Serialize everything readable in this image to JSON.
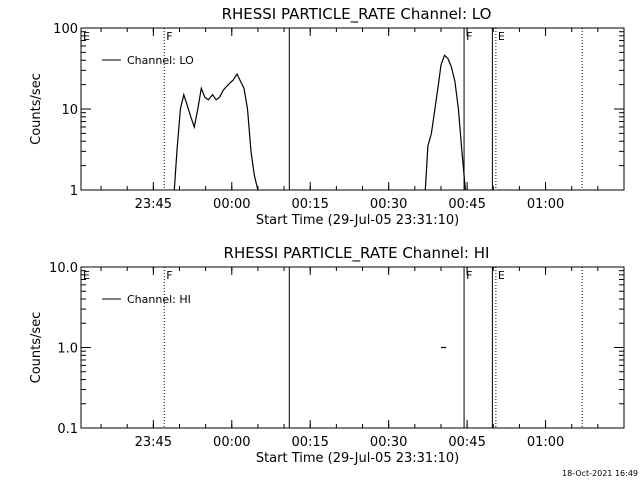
{
  "footer": {
    "timestamp": "18-Oct-2021 16:49"
  },
  "chart_data": [
    {
      "type": "line",
      "title": "RHESSI PARTICLE_RATE Channel: LO",
      "xlabel": "Start Time (29-Jul-05 23:31:10)",
      "ylabel": "Counts/sec",
      "yscale": "log",
      "ylim": [
        1,
        100
      ],
      "xlim": [
        "23:31:10",
        "01:15:00"
      ],
      "x_ticks": [
        "23:45",
        "00:00",
        "00:15",
        "00:30",
        "00:45",
        "01:00"
      ],
      "y_ticks": [
        "1",
        "10",
        "100"
      ],
      "legend": {
        "position": "top-left",
        "entries": [
          "Channel: LO"
        ]
      },
      "markers": [
        {
          "label": "E",
          "time": "23:31:10",
          "style": "dotted"
        },
        {
          "label": "F",
          "time": "23:47:05",
          "style": "dotted"
        },
        {
          "label": "",
          "time": "00:11:00",
          "style": "solid"
        },
        {
          "label": "F",
          "time": "00:44:25",
          "style": "solid"
        },
        {
          "label": "",
          "time": "00:49:50",
          "style": "solid"
        },
        {
          "label": "E",
          "time": "00:50:30",
          "style": "dotted"
        },
        {
          "label": "",
          "time": "01:07:00",
          "style": "dotted"
        }
      ],
      "series": [
        {
          "name": "Channel: LO",
          "segments": [
            [
              [
                "23:49:00",
                1
              ],
              [
                "23:49:30",
                3
              ],
              [
                "23:50:10",
                10
              ],
              [
                "23:50:50",
                15
              ],
              [
                "23:51:30",
                11
              ],
              [
                "23:52:10",
                8
              ],
              [
                "23:52:50",
                6
              ],
              [
                "23:53:30",
                10
              ],
              [
                "23:54:10",
                18
              ],
              [
                "23:54:50",
                14
              ],
              [
                "23:55:30",
                13
              ],
              [
                "23:56:20",
                15
              ],
              [
                "23:57:00",
                13
              ],
              [
                "23:57:40",
                14
              ],
              [
                "23:58:20",
                17
              ],
              [
                "23:59:00",
                19
              ],
              [
                "23:59:40",
                21
              ],
              [
                "00:00:20",
                23
              ],
              [
                "00:01:00",
                27
              ],
              [
                "00:01:40",
                22
              ],
              [
                "00:02:20",
                18
              ],
              [
                "00:03:00",
                10
              ],
              [
                "00:03:40",
                3
              ],
              [
                "00:04:20",
                1.5
              ],
              [
                "00:05:00",
                1
              ]
            ],
            [
              [
                "00:37:00",
                1
              ],
              [
                "00:37:30",
                3.5
              ],
              [
                "00:38:10",
                5
              ],
              [
                "00:38:50",
                10
              ],
              [
                "00:39:30",
                20
              ],
              [
                "00:40:00",
                35
              ],
              [
                "00:40:40",
                46
              ],
              [
                "00:41:20",
                42
              ],
              [
                "00:42:00",
                33
              ],
              [
                "00:42:40",
                22
              ],
              [
                "00:43:20",
                10
              ],
              [
                "00:44:00",
                3
              ],
              [
                "00:44:40",
                1
              ]
            ]
          ]
        }
      ]
    },
    {
      "type": "line",
      "title": "RHESSI PARTICLE_RATE Channel: HI",
      "xlabel": "Start Time (29-Jul-05 23:31:10)",
      "ylabel": "Counts/sec",
      "yscale": "log",
      "ylim": [
        0.1,
        10
      ],
      "xlim": [
        "23:31:10",
        "01:15:00"
      ],
      "x_ticks": [
        "23:45",
        "00:00",
        "00:15",
        "00:30",
        "00:45",
        "01:00"
      ],
      "y_ticks": [
        "0.1",
        "1.0",
        "10.0"
      ],
      "legend": {
        "position": "top-left",
        "entries": [
          "Channel: HI"
        ]
      },
      "markers": [
        {
          "label": "E",
          "time": "23:31:10",
          "style": "dotted"
        },
        {
          "label": "F",
          "time": "23:47:05",
          "style": "dotted"
        },
        {
          "label": "",
          "time": "00:11:00",
          "style": "solid"
        },
        {
          "label": "F",
          "time": "00:44:25",
          "style": "solid"
        },
        {
          "label": "",
          "time": "00:49:50",
          "style": "solid"
        },
        {
          "label": "E",
          "time": "00:50:30",
          "style": "dotted"
        },
        {
          "label": "",
          "time": "01:07:00",
          "style": "dotted"
        }
      ],
      "series": [
        {
          "name": "Channel: HI",
          "segments": [
            [
              [
                "00:40:00",
                1
              ],
              [
                "00:41:00",
                1
              ]
            ]
          ]
        }
      ]
    }
  ]
}
